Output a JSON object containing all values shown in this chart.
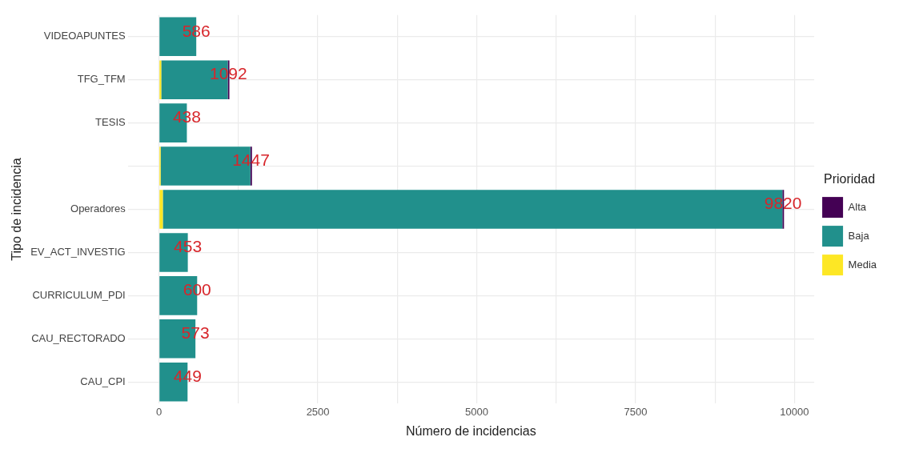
{
  "chart_data": {
    "type": "bar",
    "orientation": "horizontal",
    "stacked": true,
    "xlabel": "Número de incidencias",
    "ylabel": "Tipo de incidencia",
    "legend_title": "Prioridad",
    "legend": "right",
    "grid": true,
    "categories": [
      "VIDEOAPUNTES",
      "TFG_TFM",
      "TESIS",
      null,
      "Operadores",
      "EV_ACT_INVESTIG",
      "CURRICULUM_PDI",
      "CAU_RECTORADO",
      "CAU_CPI"
    ],
    "series": [
      {
        "name": "Media",
        "color": "#fde725",
        "values": [
          null,
          35,
          null,
          25,
          60,
          null,
          null,
          null,
          null
        ]
      },
      {
        "name": "Baja",
        "color": "#21908c",
        "values": [
          586,
          1047,
          438,
          1412,
          9750,
          453,
          600,
          573,
          449
        ]
      },
      {
        "name": "Alta",
        "color": "#440154",
        "values": [
          null,
          10,
          null,
          10,
          10,
          null,
          null,
          null,
          null
        ]
      }
    ],
    "totals": [
      "586",
      "1092",
      "438",
      "1447",
      "9820",
      "453",
      "600",
      "573",
      "449"
    ],
    "xlim": [
      -491,
      10311
    ],
    "xticks": [
      0,
      {
        "value": 1250,
        "label": null
      },
      2500,
      {
        "value": 3750,
        "label": null
      },
      5000,
      {
        "value": 6250,
        "label": null
      },
      7500,
      {
        "value": 8750,
        "label": null
      },
      10000
    ]
  }
}
